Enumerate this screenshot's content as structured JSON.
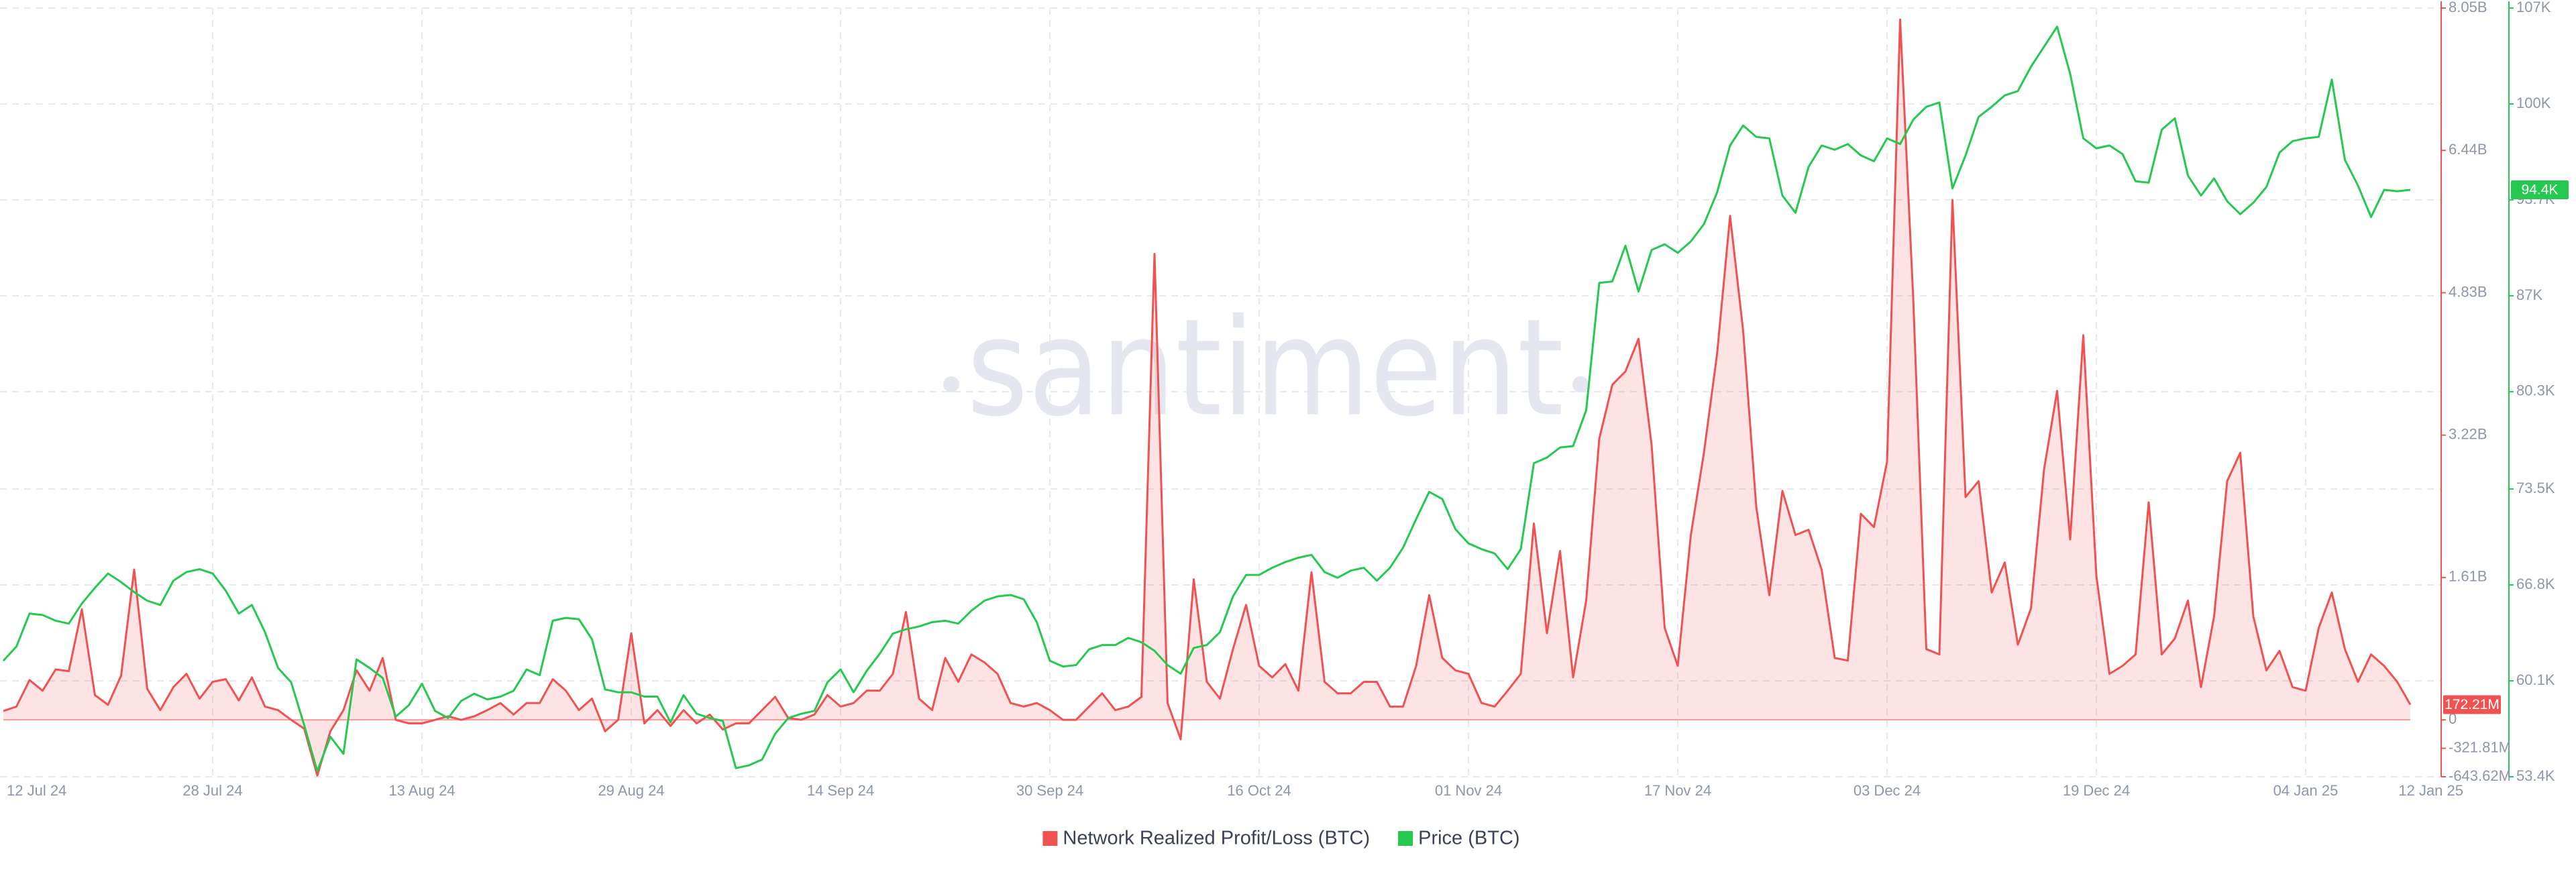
{
  "chart_data": {
    "type": "line",
    "watermark": "santiment",
    "legend": "bottom",
    "grid": true,
    "x": [
      "2024-07-12",
      "2024-07-13",
      "2024-07-14",
      "2024-07-15",
      "2024-07-16",
      "2024-07-17",
      "2024-07-18",
      "2024-07-19",
      "2024-07-20",
      "2024-07-21",
      "2024-07-22",
      "2024-07-23",
      "2024-07-24",
      "2024-07-25",
      "2024-07-26",
      "2024-07-27",
      "2024-07-28",
      "2024-07-29",
      "2024-07-30",
      "2024-07-31",
      "2024-08-01",
      "2024-08-02",
      "2024-08-03",
      "2024-08-04",
      "2024-08-05",
      "2024-08-06",
      "2024-08-07",
      "2024-08-08",
      "2024-08-09",
      "2024-08-10",
      "2024-08-11",
      "2024-08-12",
      "2024-08-13",
      "2024-08-14",
      "2024-08-15",
      "2024-08-16",
      "2024-08-17",
      "2024-08-18",
      "2024-08-19",
      "2024-08-20",
      "2024-08-21",
      "2024-08-22",
      "2024-08-23",
      "2024-08-24",
      "2024-08-25",
      "2024-08-26",
      "2024-08-27",
      "2024-08-28",
      "2024-08-29",
      "2024-08-30",
      "2024-08-31",
      "2024-09-01",
      "2024-09-02",
      "2024-09-03",
      "2024-09-04",
      "2024-09-05",
      "2024-09-06",
      "2024-09-07",
      "2024-09-08",
      "2024-09-09",
      "2024-09-10",
      "2024-09-11",
      "2024-09-12",
      "2024-09-13",
      "2024-09-14",
      "2024-09-15",
      "2024-09-16",
      "2024-09-17",
      "2024-09-18",
      "2024-09-19",
      "2024-09-20",
      "2024-09-21",
      "2024-09-22",
      "2024-09-23",
      "2024-09-24",
      "2024-09-25",
      "2024-09-26",
      "2024-09-27",
      "2024-09-28",
      "2024-09-29",
      "2024-09-30",
      "2024-10-01",
      "2024-10-02",
      "2024-10-03",
      "2024-10-04",
      "2024-10-05",
      "2024-10-06",
      "2024-10-07",
      "2024-10-08",
      "2024-10-09",
      "2024-10-10",
      "2024-10-11",
      "2024-10-12",
      "2024-10-13",
      "2024-10-14",
      "2024-10-15",
      "2024-10-16",
      "2024-10-17",
      "2024-10-18",
      "2024-10-19",
      "2024-10-20",
      "2024-10-21",
      "2024-10-22",
      "2024-10-23",
      "2024-10-24",
      "2024-10-25",
      "2024-10-26",
      "2024-10-27",
      "2024-10-28",
      "2024-10-29",
      "2024-10-30",
      "2024-10-31",
      "2024-11-01",
      "2024-11-02",
      "2024-11-03",
      "2024-11-04",
      "2024-11-05",
      "2024-11-06",
      "2024-11-07",
      "2024-11-08",
      "2024-11-09",
      "2024-11-10",
      "2024-11-11",
      "2024-11-12",
      "2024-11-13",
      "2024-11-14",
      "2024-11-15",
      "2024-11-16",
      "2024-11-17",
      "2024-11-18",
      "2024-11-19",
      "2024-11-20",
      "2024-11-21",
      "2024-11-22",
      "2024-11-23",
      "2024-11-24",
      "2024-11-25",
      "2024-11-26",
      "2024-11-27",
      "2024-11-28",
      "2024-11-29",
      "2024-11-30",
      "2024-12-01",
      "2024-12-02",
      "2024-12-03",
      "2024-12-04",
      "2024-12-05",
      "2024-12-06",
      "2024-12-07",
      "2024-12-08",
      "2024-12-09",
      "2024-12-10",
      "2024-12-11",
      "2024-12-12",
      "2024-12-13",
      "2024-12-14",
      "2024-12-15",
      "2024-12-16",
      "2024-12-17",
      "2024-12-18",
      "2024-12-19",
      "2024-12-20",
      "2024-12-21",
      "2024-12-22",
      "2024-12-23",
      "2024-12-24",
      "2024-12-25",
      "2024-12-26",
      "2024-12-27",
      "2024-12-28",
      "2024-12-29",
      "2024-12-30",
      "2024-12-31",
      "2025-01-01",
      "2025-01-02",
      "2025-01-03",
      "2025-01-04",
      "2025-01-05",
      "2025-01-06",
      "2025-01-07",
      "2025-01-08",
      "2025-01-09",
      "2025-01-10",
      "2025-01-11",
      "2025-01-12"
    ],
    "xticks": [
      {
        "value": "2024-07-12",
        "label": "12 Jul 24"
      },
      {
        "value": "2024-07-28",
        "label": "28 Jul 24"
      },
      {
        "value": "2024-08-13",
        "label": "13 Aug 24"
      },
      {
        "value": "2024-08-29",
        "label": "29 Aug 24"
      },
      {
        "value": "2024-09-14",
        "label": "14 Sep 24"
      },
      {
        "value": "2024-09-30",
        "label": "30 Sep 24"
      },
      {
        "value": "2024-10-16",
        "label": "16 Oct 24"
      },
      {
        "value": "2024-11-01",
        "label": "01 Nov 24"
      },
      {
        "value": "2024-11-17",
        "label": "17 Nov 24"
      },
      {
        "value": "2024-12-03",
        "label": "03 Dec 24"
      },
      {
        "value": "2024-12-19",
        "label": "19 Dec 24"
      },
      {
        "value": "2025-01-04",
        "label": "04 Jan 25"
      },
      {
        "value": "2025-01-12",
        "label": "12 Jan 25"
      }
    ],
    "ylim": [
      -0.64362,
      8.05
    ],
    "yticks": [
      {
        "value": -0.64362,
        "label": "-643.62M"
      },
      {
        "value": -0.32181,
        "label": "-321.81M"
      },
      0,
      {
        "value": 1.61,
        "label": "1.61B"
      },
      {
        "value": 3.22,
        "label": "3.22B"
      },
      {
        "value": 4.83,
        "label": "4.83B"
      },
      {
        "value": 6.44,
        "label": "6.44B"
      },
      {
        "value": 8.05,
        "label": "8.05B"
      }
    ],
    "y2lim": [
      53.4,
      107.1
    ],
    "y2ticks": [
      {
        "value": 53.4,
        "label": "53.4K"
      },
      {
        "value": 60.1,
        "label": "60.1K"
      },
      {
        "value": 66.8,
        "label": "66.8K"
      },
      {
        "value": 73.5,
        "label": "73.5K"
      },
      {
        "value": 80.3,
        "label": "80.3K"
      },
      {
        "value": 87.0,
        "label": "87K"
      },
      {
        "value": 93.7,
        "label": "93.7K"
      },
      {
        "value": 100.4,
        "label": "100K"
      },
      {
        "value": 107.1,
        "label": "107K"
      }
    ],
    "series": [
      {
        "name": "Network Realized Profit/Loss (BTC)",
        "color": "#f05252",
        "axis": "y",
        "area": true,
        "values": [
          0.1,
          0.15,
          0.45,
          0.33,
          0.57,
          0.55,
          1.25,
          0.28,
          0.17,
          0.5,
          1.7,
          0.35,
          0.11,
          0.37,
          0.52,
          0.24,
          0.43,
          0.46,
          0.22,
          0.48,
          0.15,
          0.11,
          0,
          -0.1,
          -0.63,
          -0.13,
          0.11,
          0.56,
          0.33,
          0.7,
          0,
          -0.04,
          -0.04,
          0,
          0.04,
          0,
          0.04,
          0.11,
          0.19,
          0.06,
          0.19,
          0.19,
          0.46,
          0.33,
          0.11,
          0.24,
          -0.13,
          0,
          0.98,
          -0.04,
          0.11,
          -0.07,
          0.11,
          -0.04,
          0.06,
          -0.11,
          -0.04,
          -0.04,
          0.11,
          0.26,
          0.02,
          0,
          0.06,
          0.28,
          0.15,
          0.19,
          0.33,
          0.33,
          0.52,
          1.22,
          0.24,
          0.11,
          0.7,
          0.43,
          0.74,
          0.65,
          0.52,
          0.19,
          0.15,
          0.19,
          0.11,
          0,
          0,
          0.15,
          0.3,
          0.11,
          0.15,
          0.26,
          5.27,
          0.19,
          -0.22,
          1.59,
          0.43,
          0.24,
          0.8,
          1.3,
          0.61,
          0.48,
          0.63,
          0.33,
          1.67,
          0.43,
          0.3,
          0.3,
          0.43,
          0.43,
          0.15,
          0.15,
          0.61,
          1.41,
          0.7,
          0.56,
          0.52,
          0.19,
          0.15,
          0.33,
          0.52,
          2.22,
          0.98,
          1.91,
          0.48,
          1.35,
          3.18,
          3.79,
          3.94,
          4.31,
          3.11,
          1.04,
          0.61,
          2.09,
          3.02,
          4.13,
          5.7,
          4.4,
          2.41,
          1.41,
          2.59,
          2.09,
          2.15,
          1.7,
          0.7,
          0.67,
          2.33,
          2.18,
          2.92,
          7.92,
          4.77,
          0.8,
          0.74,
          5.88,
          2.52,
          2.7,
          1.44,
          1.78,
          0.85,
          1.26,
          2.83,
          3.72,
          2.04,
          4.35,
          1.63,
          0.52,
          0.61,
          0.74,
          2.46,
          0.74,
          0.92,
          1.35,
          0.37,
          1.17,
          2.7,
          3.02,
          1.17,
          0.56,
          0.78,
          0.37,
          0.33,
          1.04,
          1.44,
          0.8,
          0.43,
          0.74,
          0.61,
          0.43,
          0.17221
        ],
        "value_labels": [
          null,
          null,
          null,
          null,
          null,
          null,
          null,
          null,
          null,
          null,
          null,
          null,
          null,
          null,
          null,
          null,
          null,
          null,
          null,
          null,
          null,
          null,
          null,
          null,
          null,
          null,
          null,
          null,
          null,
          null,
          null,
          null,
          null,
          null,
          null,
          null,
          null,
          null,
          null,
          null,
          null,
          null,
          null,
          null,
          null,
          null,
          null,
          null,
          null,
          null,
          null,
          null,
          null,
          null,
          null,
          null,
          null,
          null,
          null,
          null,
          null,
          null,
          null,
          null,
          null,
          null,
          null,
          null,
          null,
          null,
          null,
          null,
          null,
          null,
          null,
          null,
          null,
          null,
          null,
          null,
          null,
          null,
          null,
          null,
          null,
          null,
          null,
          null,
          null,
          null,
          null,
          null,
          null,
          null,
          null,
          null,
          null,
          null,
          null,
          null,
          null,
          null,
          null,
          null,
          null,
          null,
          null,
          null,
          null,
          null,
          null,
          null,
          null,
          null,
          null,
          null,
          null,
          null,
          null,
          null,
          null,
          null,
          null,
          null,
          null,
          null,
          null,
          null,
          null,
          null,
          null,
          null,
          null,
          null,
          null,
          null,
          null,
          null,
          null,
          null,
          null,
          null,
          null,
          null,
          null,
          null,
          null,
          null,
          null,
          null,
          null,
          null,
          null,
          null,
          null,
          null,
          null,
          null,
          null,
          null,
          null,
          null,
          null,
          null,
          null,
          null,
          null,
          null,
          null,
          null,
          null,
          null,
          null,
          null,
          null,
          null,
          null,
          null,
          null,
          null,
          null,
          null,
          null,
          null,
          "172.21M"
        ]
      },
      {
        "name": "Price (BTC)",
        "color": "#26c950",
        "axis": "y2",
        "values": [
          61.5,
          62.5,
          64.8,
          64.7,
          64.3,
          64.1,
          65.5,
          66.6,
          67.6,
          67.0,
          66.3,
          65.7,
          65.4,
          67.1,
          67.7,
          67.9,
          67.6,
          66.4,
          64.8,
          65.4,
          63.5,
          61.0,
          60.0,
          57.0,
          53.8,
          56.2,
          55.0,
          61.6,
          61.0,
          60.3,
          57.6,
          58.4,
          59.9,
          58.0,
          57.5,
          58.7,
          59.2,
          58.8,
          59.0,
          59.4,
          60.9,
          60.5,
          64.3,
          64.5,
          64.4,
          63.0,
          59.5,
          59.3,
          59.3,
          59.0,
          59.0,
          57.2,
          59.1,
          57.8,
          57.5,
          57.3,
          54.0,
          54.2,
          54.6,
          56.4,
          57.5,
          57.8,
          58.0,
          60.0,
          60.9,
          59.3,
          60.8,
          62.0,
          63.4,
          63.7,
          63.9,
          64.2,
          64.3,
          64.1,
          65.0,
          65.7,
          66.0,
          66.1,
          65.8,
          64.2,
          61.5,
          61.1,
          61.2,
          62.3,
          62.6,
          62.6,
          63.1,
          62.8,
          62.2,
          61.2,
          60.6,
          62.4,
          62.6,
          63.5,
          66.0,
          67.5,
          67.5,
          68.0,
          68.4,
          68.7,
          68.9,
          67.7,
          67.3,
          67.8,
          68.0,
          67.1,
          68.0,
          69.4,
          71.4,
          73.3,
          72.8,
          70.7,
          69.7,
          69.3,
          69.0,
          67.9,
          69.3,
          75.3,
          75.7,
          76.4,
          76.5,
          79.0,
          87.9,
          88.0,
          90.5,
          87.3,
          90.2,
          90.6,
          90.0,
          90.8,
          92.0,
          94.2,
          97.5,
          98.9,
          98.1,
          98.0,
          94.0,
          92.8,
          96.0,
          97.5,
          97.2,
          97.6,
          96.8,
          96.4,
          98.0,
          97.6,
          99.3,
          100.2,
          100.5,
          94.5,
          96.8,
          99.5,
          100.2,
          101.0,
          101.3,
          103.0,
          104.4,
          105.8,
          102.5,
          98.0,
          97.3,
          97.5,
          96.9,
          95.0,
          94.9,
          98.6,
          99.4,
          95.4,
          94.0,
          95.2,
          93.6,
          92.7,
          93.5,
          94.6,
          97.0,
          97.8,
          98.0,
          98.1,
          102.1,
          96.5,
          94.7,
          92.5,
          94.4,
          94.3,
          94.4
        ],
        "value_labels": [
          null,
          null,
          null,
          null,
          null,
          null,
          null,
          null,
          null,
          null,
          null,
          null,
          null,
          null,
          null,
          null,
          null,
          null,
          null,
          null,
          null,
          null,
          null,
          null,
          null,
          null,
          null,
          null,
          null,
          null,
          null,
          null,
          null,
          null,
          null,
          null,
          null,
          null,
          null,
          null,
          null,
          null,
          null,
          null,
          null,
          null,
          null,
          null,
          null,
          null,
          null,
          null,
          null,
          null,
          null,
          null,
          null,
          null,
          null,
          null,
          null,
          null,
          null,
          null,
          null,
          null,
          null,
          null,
          null,
          null,
          null,
          null,
          null,
          null,
          null,
          null,
          null,
          null,
          null,
          null,
          null,
          null,
          null,
          null,
          null,
          null,
          null,
          null,
          null,
          null,
          null,
          null,
          null,
          null,
          null,
          null,
          null,
          null,
          null,
          null,
          null,
          null,
          null,
          null,
          null,
          null,
          null,
          null,
          null,
          null,
          null,
          null,
          null,
          null,
          null,
          null,
          null,
          null,
          null,
          null,
          null,
          null,
          null,
          null,
          null,
          null,
          null,
          null,
          null,
          null,
          null,
          null,
          null,
          null,
          null,
          null,
          null,
          null,
          null,
          null,
          null,
          null,
          null,
          null,
          null,
          null,
          null,
          null,
          null,
          null,
          null,
          null,
          null,
          null,
          null,
          null,
          null,
          null,
          null,
          null,
          null,
          null,
          null,
          null,
          null,
          null,
          null,
          null,
          null,
          null,
          null,
          null,
          null,
          null,
          null,
          null,
          null,
          null,
          null,
          null,
          null,
          null,
          null,
          null,
          "94.4K"
        ]
      }
    ]
  }
}
